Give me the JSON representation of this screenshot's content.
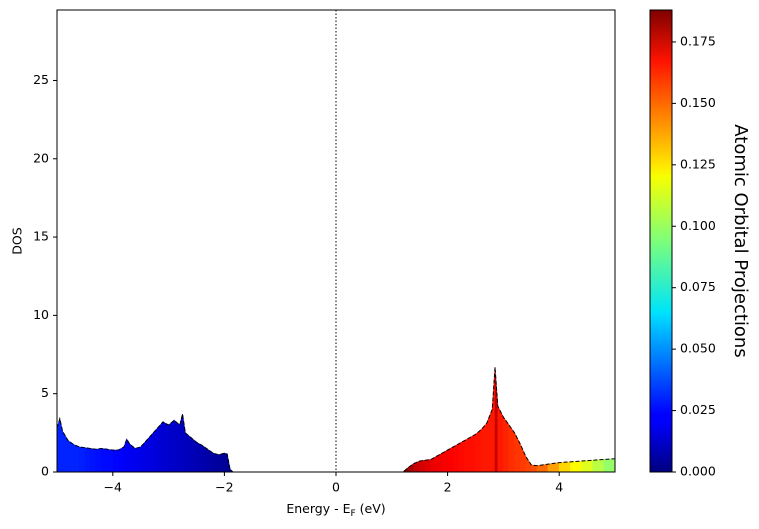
{
  "chart_data": {
    "type": "area",
    "ylabel": "DOS",
    "xlabel": [
      "Energy - E",
      "F",
      " (eV)"
    ],
    "xlim": [
      -5,
      5
    ],
    "ylim": [
      0,
      29.5
    ],
    "xticks": [
      {
        "value": -4,
        "label": "−4"
      },
      {
        "value": -2,
        "label": "−2"
      },
      0,
      2,
      4
    ],
    "yticks": [
      0,
      5,
      10,
      15,
      20,
      25
    ],
    "vline": 0,
    "x": [
      -5,
      -4.95,
      -4.9,
      -4.8,
      -4.7,
      -4.6,
      -4.5,
      -4.4,
      -4.3,
      -4.2,
      -4.1,
      -4.0,
      -3.9,
      -3.8,
      -3.75,
      -3.7,
      -3.6,
      -3.5,
      -3.4,
      -3.3,
      -3.2,
      -3.1,
      -3.0,
      -2.9,
      -2.8,
      -2.75,
      -2.7,
      -2.6,
      -2.5,
      -2.4,
      -2.3,
      -2.2,
      -2.1,
      -2.0,
      -1.95,
      -1.9,
      -1.85,
      1.2,
      1.3,
      1.4,
      1.5,
      1.6,
      1.7,
      1.8,
      1.9,
      2.0,
      2.1,
      2.2,
      2.3,
      2.4,
      2.5,
      2.6,
      2.7,
      2.8,
      2.85,
      2.9,
      3.0,
      3.1,
      3.2,
      3.3,
      3.4,
      3.5,
      3.6,
      3.8,
      4.0,
      4.2,
      4.4,
      4.6,
      4.8,
      5.0
    ],
    "series": [
      {
        "values": [
          2.8,
          3.4,
          2.6,
          2.0,
          1.75,
          1.6,
          1.55,
          1.5,
          1.45,
          1.5,
          1.45,
          1.4,
          1.4,
          1.6,
          2.1,
          1.8,
          1.5,
          1.6,
          2.0,
          2.4,
          2.8,
          3.2,
          3.0,
          3.3,
          3.0,
          3.7,
          2.5,
          2.2,
          1.9,
          1.7,
          1.45,
          1.2,
          1.1,
          1.2,
          1.15,
          0.2,
          0.0,
          0.0,
          0.3,
          0.55,
          0.7,
          0.75,
          0.8,
          1.0,
          1.2,
          1.4,
          1.6,
          1.8,
          2.0,
          2.2,
          2.4,
          2.7,
          3.1,
          4.0,
          6.7,
          4.2,
          3.5,
          3.0,
          2.5,
          1.8,
          1.0,
          0.45,
          0.4,
          0.5,
          0.6,
          0.65,
          0.7,
          0.75,
          0.8,
          0.85
        ],
        "projection": [
          0.03,
          0.03,
          0.03,
          0.03,
          0.03,
          0.029,
          0.028,
          0.027,
          0.026,
          0.025,
          0.025,
          0.024,
          0.023,
          0.022,
          0.022,
          0.021,
          0.02,
          0.019,
          0.018,
          0.017,
          0.016,
          0.015,
          0.014,
          0.013,
          0.012,
          0.012,
          0.011,
          0.01,
          0.009,
          0.008,
          0.007,
          0.006,
          0.005,
          0.004,
          0.004,
          0.004,
          0.004,
          0.185,
          0.18,
          0.175,
          0.172,
          0.17,
          0.168,
          0.167,
          0.166,
          0.165,
          0.164,
          0.163,
          0.162,
          0.162,
          0.161,
          0.16,
          0.16,
          0.16,
          0.175,
          0.16,
          0.158,
          0.156,
          0.155,
          0.154,
          0.152,
          0.15,
          0.145,
          0.135,
          0.125,
          0.118,
          0.112,
          0.105,
          0.098,
          0.09
        ],
        "colormap": "jet"
      }
    ],
    "colorbar": {
      "label": "Atomic Orbital Projections",
      "lim": [
        0,
        0.188
      ],
      "ticks": [
        {
          "value": 0,
          "label": "0.000"
        },
        {
          "value": 0.025,
          "label": "0.025"
        },
        {
          "value": 0.05,
          "label": "0.050"
        },
        {
          "value": 0.075,
          "label": "0.075"
        },
        {
          "value": 0.1,
          "label": "0.100"
        },
        {
          "value": 0.125,
          "label": "0.125"
        },
        {
          "value": 0.15,
          "label": "0.150"
        },
        {
          "value": 0.175,
          "label": "0.175"
        }
      ]
    }
  }
}
